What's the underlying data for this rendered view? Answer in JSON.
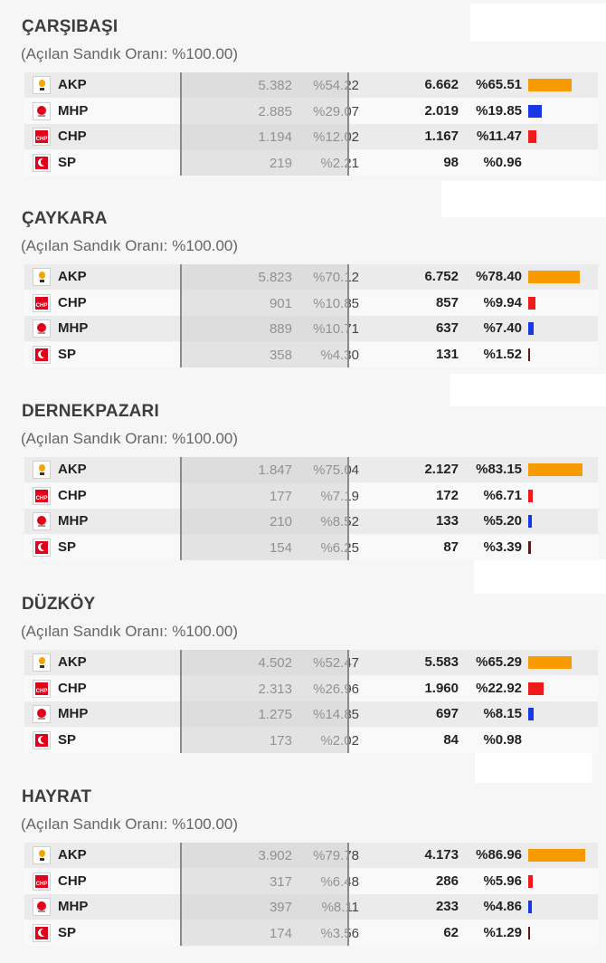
{
  "subtitle": "(Açılan Sandık Oranı: %100.00)",
  "colors": {
    "AKP": "#f79a00",
    "MHP": "#1638e6",
    "CHP": "#ee1b1b",
    "SP": "#5b1a1a"
  },
  "districts": [
    {
      "name": "ÇARŞIBAŞI",
      "rows": [
        {
          "party": "AKP",
          "logo": "akp-logo-icon",
          "prev_votes": "5.382",
          "prev_pct": "%54.22",
          "votes": "6.662",
          "pct": "%65.51",
          "share": 65.51
        },
        {
          "party": "MHP",
          "logo": "mhp-logo-icon",
          "prev_votes": "2.885",
          "prev_pct": "%29.07",
          "votes": "2.019",
          "pct": "%19.85",
          "share": 19.85
        },
        {
          "party": "CHP",
          "logo": "chp-logo-icon",
          "prev_votes": "1.194",
          "prev_pct": "%12.02",
          "votes": "1.167",
          "pct": "%11.47",
          "share": 11.47
        },
        {
          "party": "SP",
          "logo": "sp-logo-icon",
          "prev_votes": "219",
          "prev_pct": "%2.21",
          "votes": "98",
          "pct": "%0.96",
          "share": 0.96
        }
      ]
    },
    {
      "name": "ÇAYKARA",
      "rows": [
        {
          "party": "AKP",
          "logo": "akp-logo-icon",
          "prev_votes": "5.823",
          "prev_pct": "%70.12",
          "votes": "6.752",
          "pct": "%78.40",
          "share": 78.4
        },
        {
          "party": "CHP",
          "logo": "chp-logo-icon",
          "prev_votes": "901",
          "prev_pct": "%10.85",
          "votes": "857",
          "pct": "%9.94",
          "share": 9.94
        },
        {
          "party": "MHP",
          "logo": "mhp-logo-icon",
          "prev_votes": "889",
          "prev_pct": "%10.71",
          "votes": "637",
          "pct": "%7.40",
          "share": 7.4
        },
        {
          "party": "SP",
          "logo": "sp-logo-icon",
          "prev_votes": "358",
          "prev_pct": "%4.30",
          "votes": "131",
          "pct": "%1.52",
          "share": 1.52
        }
      ]
    },
    {
      "name": "DERNEKPAZARI",
      "rows": [
        {
          "party": "AKP",
          "logo": "akp-logo-icon",
          "prev_votes": "1.847",
          "prev_pct": "%75.04",
          "votes": "2.127",
          "pct": "%83.15",
          "share": 83.15
        },
        {
          "party": "CHP",
          "logo": "chp-logo-icon",
          "prev_votes": "177",
          "prev_pct": "%7.19",
          "votes": "172",
          "pct": "%6.71",
          "share": 6.71
        },
        {
          "party": "MHP",
          "logo": "mhp-logo-icon",
          "prev_votes": "210",
          "prev_pct": "%8.52",
          "votes": "133",
          "pct": "%5.20",
          "share": 5.2
        },
        {
          "party": "SP",
          "logo": "sp-logo-icon",
          "prev_votes": "154",
          "prev_pct": "%6.25",
          "votes": "87",
          "pct": "%3.39",
          "share": 3.39
        }
      ]
    },
    {
      "name": "DÜZKÖY",
      "rows": [
        {
          "party": "AKP",
          "logo": "akp-logo-icon",
          "prev_votes": "4.502",
          "prev_pct": "%52.47",
          "votes": "5.583",
          "pct": "%65.29",
          "share": 65.29
        },
        {
          "party": "CHP",
          "logo": "chp-logo-icon",
          "prev_votes": "2.313",
          "prev_pct": "%26.96",
          "votes": "1.960",
          "pct": "%22.92",
          "share": 22.92
        },
        {
          "party": "MHP",
          "logo": "mhp-logo-icon",
          "prev_votes": "1.275",
          "prev_pct": "%14.85",
          "votes": "697",
          "pct": "%8.15",
          "share": 8.15
        },
        {
          "party": "SP",
          "logo": "sp-logo-icon",
          "prev_votes": "173",
          "prev_pct": "%2.02",
          "votes": "84",
          "pct": "%0.98",
          "share": 0.98
        }
      ]
    },
    {
      "name": "HAYRAT",
      "rows": [
        {
          "party": "AKP",
          "logo": "akp-logo-icon",
          "prev_votes": "3.902",
          "prev_pct": "%79.78",
          "votes": "4.173",
          "pct": "%86.96",
          "share": 86.96
        },
        {
          "party": "CHP",
          "logo": "chp-logo-icon",
          "prev_votes": "317",
          "prev_pct": "%6.48",
          "votes": "286",
          "pct": "%5.96",
          "share": 5.96
        },
        {
          "party": "MHP",
          "logo": "mhp-logo-icon",
          "prev_votes": "397",
          "prev_pct": "%8.11",
          "votes": "233",
          "pct": "%4.86",
          "share": 4.86
        },
        {
          "party": "SP",
          "logo": "sp-logo-icon",
          "prev_votes": "174",
          "prev_pct": "%3.56",
          "votes": "62",
          "pct": "%1.29",
          "share": 1.29
        }
      ]
    }
  ]
}
